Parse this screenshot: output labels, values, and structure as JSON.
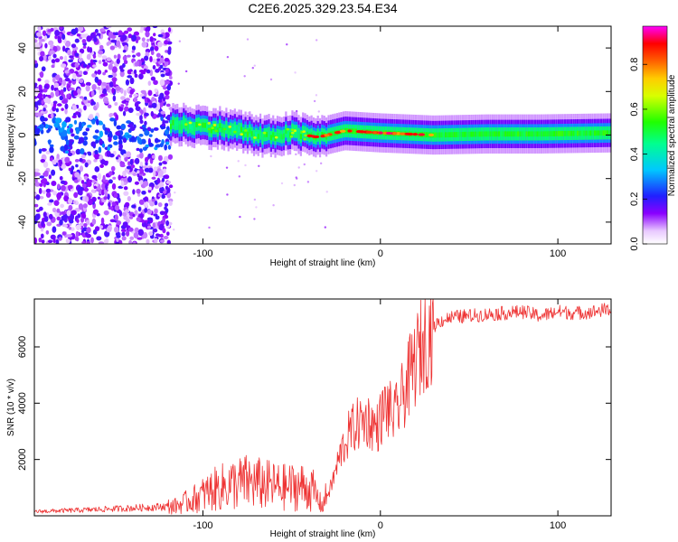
{
  "chart_data": [
    {
      "type": "heatmap",
      "title": "C2E6.2025.329.23.54.E34",
      "xlabel": "Height of straight line (km)",
      "ylabel": "Frequency (Hz)",
      "xlim": [
        -195,
        130
      ],
      "ylim": [
        -50,
        50
      ],
      "xticks": [
        -100,
        0,
        100
      ],
      "yticks": [
        -40,
        -20,
        0,
        20,
        40
      ],
      "colorbar": {
        "label": "Normalized spectral amplitude",
        "range": [
          0,
          0.97
        ],
        "ticks": [
          0.0,
          0.2,
          0.4,
          0.6,
          0.8
        ]
      },
      "regions": [
        {
          "name": "scattered noise",
          "x": [
            -195,
            -118
          ],
          "frequency_range": [
            -50,
            50
          ],
          "amplitude": [
            0.05,
            0.2
          ]
        },
        {
          "name": "signal band onset",
          "x": [
            -118,
            -40
          ],
          "frequency_center": [
            5,
            -2
          ],
          "amplitude": [
            0.2,
            0.6
          ]
        },
        {
          "name": "signal band",
          "x": [
            -40,
            130
          ],
          "frequency_center": [
            0,
            1
          ],
          "amplitude": [
            0.4,
            0.95
          ]
        }
      ],
      "band_center": [
        {
          "x": -118,
          "f": 5
        },
        {
          "x": -100,
          "f": 4
        },
        {
          "x": -80,
          "f": 2
        },
        {
          "x": -65,
          "f": -1
        },
        {
          "x": -50,
          "f": 1
        },
        {
          "x": -35,
          "f": -1
        },
        {
          "x": -20,
          "f": 2
        },
        {
          "x": 0,
          "f": 1
        },
        {
          "x": 30,
          "f": 0
        },
        {
          "x": 60,
          "f": 0.5
        },
        {
          "x": 90,
          "f": 0.5
        },
        {
          "x": 130,
          "f": 1
        }
      ]
    },
    {
      "type": "line",
      "xlabel": "Height of straight line (km)",
      "ylabel": "SNR (10 * v/v)",
      "xlim": [
        -195,
        130
      ],
      "ylim": [
        0,
        7700
      ],
      "xticks": [
        -100,
        0,
        100
      ],
      "yticks": [
        2000,
        4000,
        6000
      ],
      "series": [
        {
          "name": "SNR",
          "color": "#ee3333",
          "x": [
            -195,
            -170,
            -150,
            -130,
            -115,
            -105,
            -95,
            -85,
            -75,
            -65,
            -55,
            -45,
            -38,
            -33,
            -28,
            -22,
            -17,
            -12,
            -7,
            -2,
            3,
            8,
            13,
            18,
            23,
            28,
            33,
            40,
            50,
            60,
            70,
            80,
            90,
            100,
            110,
            120,
            130
          ],
          "y": [
            150,
            200,
            250,
            300,
            350,
            600,
            900,
            1100,
            1200,
            1100,
            1000,
            1050,
            900,
            350,
            1000,
            2300,
            3000,
            3300,
            3400,
            3100,
            3900,
            3500,
            4300,
            5200,
            6000,
            6600,
            6900,
            7050,
            7100,
            7150,
            7200,
            7250,
            7100,
            7250,
            7200,
            7250,
            7350
          ]
        }
      ]
    }
  ]
}
